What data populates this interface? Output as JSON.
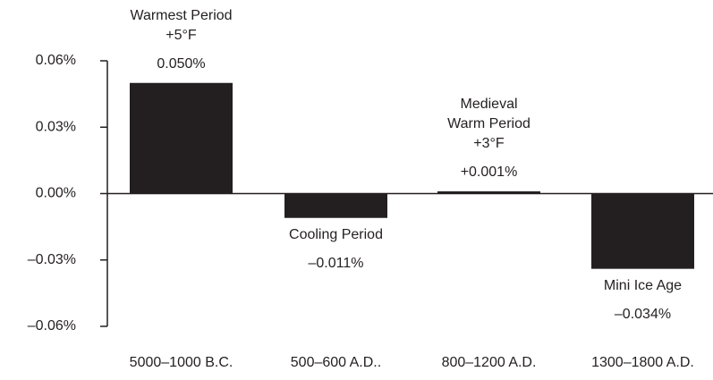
{
  "chart_data": {
    "type": "bar",
    "categories": [
      "5000–1000 B.C.",
      "500–600 A.D..",
      "800–1200 A.D.",
      "1300–1800 A.D."
    ],
    "values": [
      0.05,
      -0.011,
      0.001,
      -0.034
    ],
    "value_labels": [
      "0.050%",
      "–0.011%",
      "+0.001%",
      "–0.034%"
    ],
    "annotations": [
      [
        "Warmest Period",
        "+5°F"
      ],
      [
        "Cooling Period"
      ],
      [
        "Medieval",
        "Warm Period",
        "+3°F"
      ],
      [
        "Mini Ice Age"
      ]
    ],
    "color": "#231f20",
    "ylim": [
      -0.06,
      0.06
    ],
    "yticks": [
      {
        "value": -0.06,
        "label": "–0.06%"
      },
      {
        "value": -0.03,
        "label": "–0.03%"
      },
      {
        "value": 0,
        "label": "0.00%"
      },
      {
        "value": 0.03,
        "label": "0.03%"
      },
      {
        "value": 0.06,
        "label": "0.06%"
      }
    ]
  }
}
